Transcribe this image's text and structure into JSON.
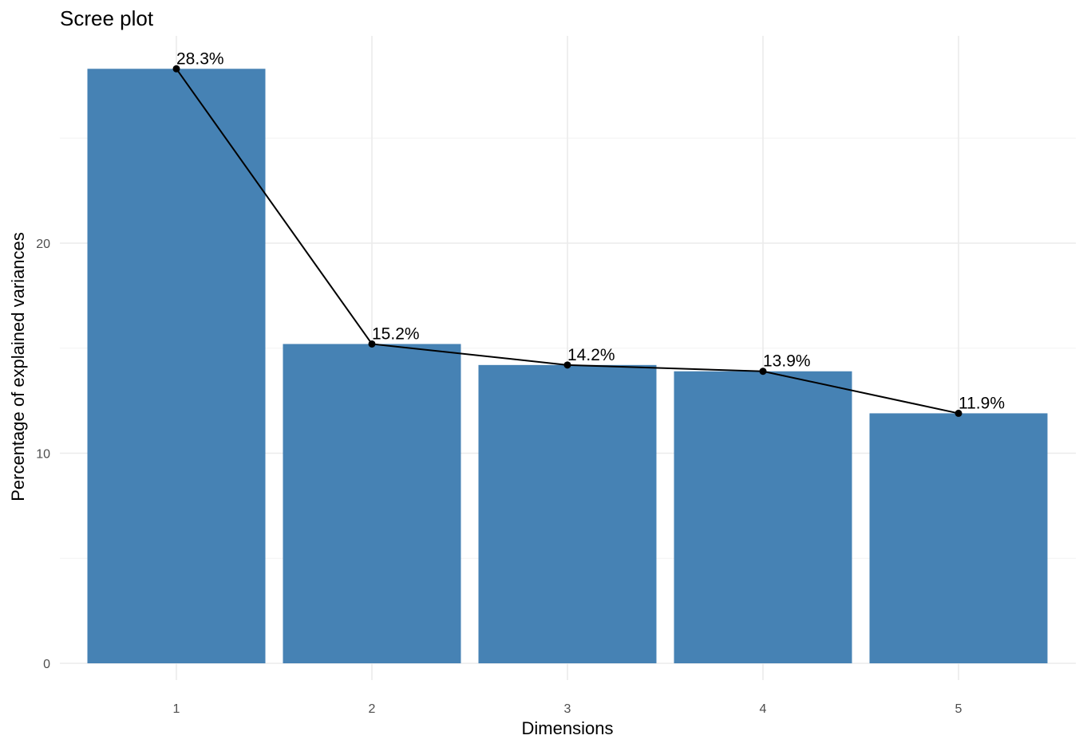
{
  "chart_data": {
    "type": "bar",
    "title": "Scree plot",
    "xlabel": "Dimensions",
    "ylabel": "Percentage of explained variances",
    "categories": [
      "1",
      "2",
      "3",
      "4",
      "5"
    ],
    "values": [
      28.3,
      15.2,
      14.2,
      13.9,
      11.9
    ],
    "data_labels": [
      "28.3%",
      "15.2%",
      "14.2%",
      "13.9%",
      "11.9%"
    ],
    "line_overlay": true,
    "y_ticks": [
      0,
      10,
      20
    ],
    "y_tick_labels": [
      "0",
      "10",
      "20"
    ],
    "ylim": [
      0,
      28.3
    ],
    "grid": true,
    "bar_color": "#4682b4",
    "line_color": "#000000"
  }
}
